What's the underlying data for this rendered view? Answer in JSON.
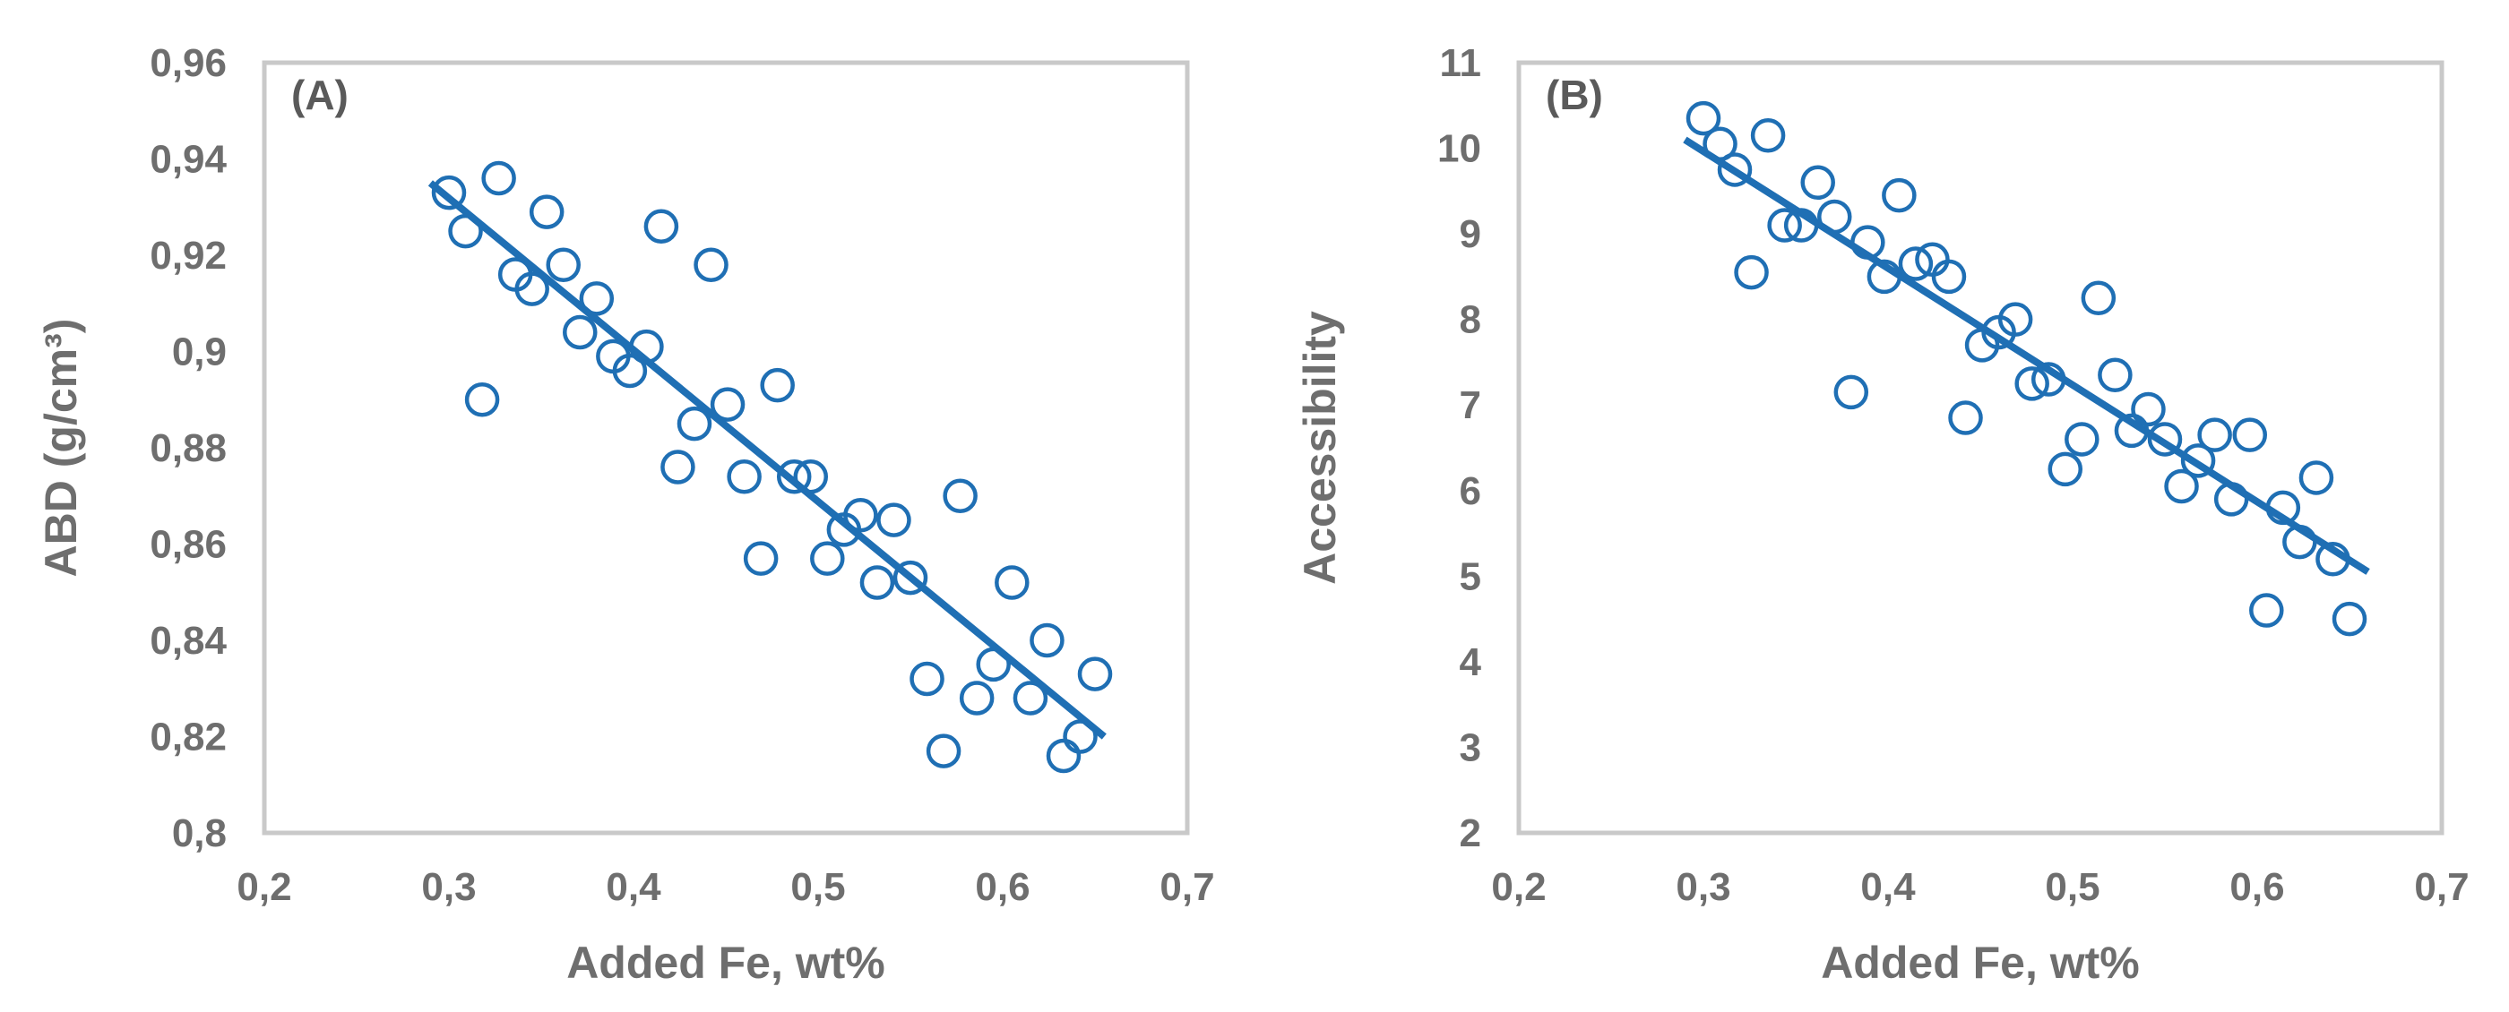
{
  "chart_data": [
    {
      "type": "scatter",
      "panel_label": "(A)",
      "xlabel": "Added Fe, wt%",
      "ylabel": "ABD (g/cm³)",
      "xlim": [
        0.2,
        0.7
      ],
      "ylim": [
        0.8,
        0.96
      ],
      "x_ticks": [
        0.2,
        0.3,
        0.4,
        0.5,
        0.6,
        0.7
      ],
      "y_ticks": [
        0.8,
        0.82,
        0.84,
        0.86,
        0.88,
        0.9,
        0.92,
        0.94,
        0.96
      ],
      "x_tick_labels": [
        "0,2",
        "0,3",
        "0,4",
        "0,5",
        "0,6",
        "0,7"
      ],
      "y_tick_labels": [
        "0,8",
        "0,82",
        "0,84",
        "0,86",
        "0,88",
        "0,9",
        "0,92",
        "0,94",
        "0,96"
      ],
      "grid": false,
      "marker_color": "#1f6fb4",
      "trendline": {
        "x": [
          0.29,
          0.655
        ],
        "y": [
          0.935,
          0.82
        ]
      },
      "points": {
        "x": [
          0.3,
          0.309,
          0.318,
          0.327,
          0.336,
          0.345,
          0.353,
          0.362,
          0.371,
          0.38,
          0.389,
          0.398,
          0.407,
          0.415,
          0.424,
          0.433,
          0.442,
          0.451,
          0.46,
          0.469,
          0.478,
          0.487,
          0.496,
          0.505,
          0.514,
          0.523,
          0.532,
          0.541,
          0.55,
          0.559,
          0.568,
          0.577,
          0.586,
          0.595,
          0.605,
          0.615,
          0.624,
          0.633,
          0.642,
          0.65
        ],
        "y": [
          0.933,
          0.925,
          0.89,
          0.936,
          0.916,
          0.913,
          0.929,
          0.918,
          0.904,
          0.911,
          0.899,
          0.896,
          0.901,
          0.926,
          0.876,
          0.885,
          0.918,
          0.889,
          0.874,
          0.857,
          0.893,
          0.874,
          0.874,
          0.857,
          0.863,
          0.866,
          0.852,
          0.865,
          0.853,
          0.832,
          0.817,
          0.87,
          0.828,
          0.835,
          0.852,
          0.828,
          0.84,
          0.816,
          0.82,
          0.833
        ]
      }
    },
    {
      "type": "scatter",
      "panel_label": "(B)",
      "xlabel": "Added Fe, wt%",
      "ylabel": "Accessibility",
      "xlim": [
        0.2,
        0.7
      ],
      "ylim": [
        2,
        11
      ],
      "x_ticks": [
        0.2,
        0.3,
        0.4,
        0.5,
        0.6,
        0.7
      ],
      "y_ticks": [
        2,
        3,
        4,
        5,
        6,
        7,
        8,
        9,
        10,
        11
      ],
      "x_tick_labels": [
        "0,2",
        "0,3",
        "0,4",
        "0,5",
        "0,6",
        "0,7"
      ],
      "y_tick_labels": [
        "2",
        "3",
        "4",
        "5",
        "6",
        "7",
        "8",
        "9",
        "10",
        "11"
      ],
      "grid": false,
      "marker_color": "#1f6fb4",
      "trendline": {
        "x": [
          0.29,
          0.66
        ],
        "y": [
          10.1,
          5.05
        ]
      },
      "points": {
        "x": [
          0.3,
          0.309,
          0.317,
          0.326,
          0.335,
          0.344,
          0.353,
          0.362,
          0.371,
          0.38,
          0.389,
          0.398,
          0.406,
          0.415,
          0.424,
          0.433,
          0.442,
          0.451,
          0.46,
          0.469,
          0.478,
          0.487,
          0.496,
          0.505,
          0.514,
          0.523,
          0.532,
          0.541,
          0.55,
          0.559,
          0.568,
          0.577,
          0.586,
          0.596,
          0.605,
          0.614,
          0.623,
          0.632,
          0.641,
          0.65
        ],
        "y": [
          10.35,
          10.05,
          9.75,
          8.55,
          10.15,
          9.1,
          9.1,
          9.6,
          9.2,
          7.15,
          8.9,
          8.5,
          9.45,
          8.65,
          8.7,
          8.5,
          6.85,
          7.7,
          7.85,
          8.0,
          7.25,
          7.3,
          6.25,
          6.6,
          8.25,
          7.35,
          6.7,
          6.95,
          6.6,
          6.05,
          6.35,
          6.65,
          5.9,
          6.65,
          4.6,
          5.8,
          5.4,
          6.15,
          5.2,
          4.5
        ]
      }
    }
  ]
}
